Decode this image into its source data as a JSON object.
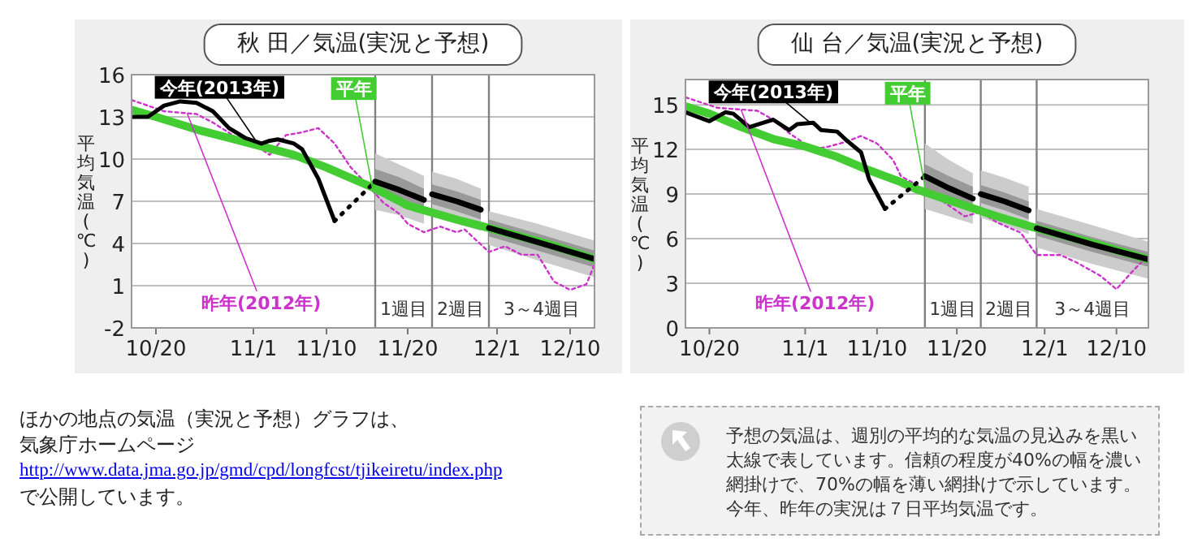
{
  "chart_data": [
    {
      "type": "line",
      "title": "秋 田／気温(実況と予想)",
      "ylabel": "平均気温(℃)",
      "xlim": [
        "--10-17",
        "--12-13"
      ],
      "xticks": [
        {
          "value": "--10-20",
          "label": "10/20"
        },
        {
          "value": "--11-01",
          "label": "11/1"
        },
        {
          "value": "--11-10",
          "label": "11/10"
        },
        {
          "value": "--11-20",
          "label": "11/20"
        },
        {
          "value": "--12-01",
          "label": "12/1"
        },
        {
          "value": "--12-10",
          "label": "12/10"
        }
      ],
      "ylim": [
        -2,
        16
      ],
      "yticks": [
        -2,
        1,
        4,
        7,
        10,
        13,
        16
      ],
      "grid": "y",
      "ref_lines": [
        {
          "axis": "x",
          "value": "--11-16",
          "label": "1週目",
          "color": "#808080"
        },
        {
          "axis": "x",
          "value": "--11-23",
          "label": "2週目",
          "color": "#808080"
        },
        {
          "axis": "x",
          "value": "--11-30",
          "label": "3～4週目",
          "color": "#808080"
        }
      ],
      "series": [
        {
          "color": "#000000",
          "x": [
            "--11-16",
            "--11-19",
            "--11-22"
          ],
          "values": [
            8.4,
            7.8,
            7.1
          ],
          "lower": [
            6.4,
            6.0,
            5.4
          ],
          "upper": [
            10.4,
            9.6,
            8.8
          ]
        },
        {
          "color": "#000000",
          "x": [
            "--11-23",
            "--11-26",
            "--11-29"
          ],
          "values": [
            7.5,
            7.0,
            6.4
          ],
          "lower": [
            5.9,
            5.4,
            4.9
          ],
          "upper": [
            9.1,
            8.6,
            7.9
          ]
        },
        {
          "color": "#000000",
          "x": [
            "--11-30",
            "--12-06",
            "--12-13"
          ],
          "values": [
            5.1,
            4.1,
            2.9
          ],
          "lower": [
            3.9,
            2.8,
            1.6
          ],
          "upper": [
            6.3,
            5.4,
            4.2
          ]
        },
        {
          "color": "#999999",
          "x": [
            "--11-16",
            "--11-19",
            "--11-22"
          ],
          "values": [
            null,
            null,
            null
          ],
          "lower": [
            7.5,
            7.0,
            6.3
          ],
          "upper": [
            9.3,
            8.7,
            7.9
          ]
        },
        {
          "color": "#999999",
          "x": [
            "--11-23",
            "--11-26",
            "--11-29"
          ],
          "values": [
            null,
            null,
            null
          ],
          "lower": [
            6.8,
            6.3,
            5.7
          ],
          "upper": [
            8.2,
            7.7,
            7.1
          ]
        },
        {
          "color": "#999999",
          "x": [
            "--11-30",
            "--12-06",
            "--12-13"
          ],
          "values": [
            null,
            null,
            null
          ],
          "lower": [
            4.5,
            3.5,
            2.3
          ],
          "upper": [
            5.7,
            4.7,
            3.5
          ]
        },
        {
          "name": "昨年(2012年)",
          "color": "#cc33cc",
          "line_style": "dotted",
          "x": [
            "--10-17",
            "--10-21",
            "--10-25",
            "--10-27",
            "--10-30",
            "--11-02",
            "--11-03",
            "--11-05",
            "--11-07",
            "--11-09",
            "--11-11",
            "--11-13",
            "--11-15",
            "--11-17",
            "--11-19",
            "--11-20",
            "--11-22",
            "--11-24",
            "--11-26",
            "--11-27",
            "--11-30",
            "--12-02",
            "--12-04",
            "--12-06",
            "--12-08",
            "--12-10",
            "--12-12",
            "--12-13"
          ],
          "values": [
            14.2,
            13.4,
            13.2,
            12.6,
            11.5,
            10.7,
            10.3,
            11.7,
            11.9,
            12.2,
            11.1,
            9.4,
            8.2,
            6.9,
            6.1,
            5.4,
            4.8,
            5.2,
            4.8,
            5.0,
            3.4,
            3.8,
            3.2,
            3.2,
            1.3,
            0.7,
            1.1,
            2.5
          ]
        },
        {
          "name": "平年",
          "color": "#44cc33",
          "x": [
            "--10-17",
            "--10-20",
            "--10-25",
            "--10-29",
            "--11-02",
            "--11-06",
            "--11-10",
            "--11-14",
            "--11-16",
            "--11-20",
            "--11-26",
            "--11-30",
            "--12-07",
            "--12-13"
          ],
          "values": [
            13.5,
            13.0,
            12.1,
            11.5,
            10.9,
            10.3,
            9.4,
            8.4,
            7.9,
            6.7,
            5.7,
            5.1,
            4.0,
            2.9
          ]
        },
        {
          "name": "今年(2013年)",
          "color": "#000000",
          "x": [
            "--10-17",
            "--10-19",
            "--10-21",
            "--10-23",
            "--10-25",
            "--10-27",
            "--10-29",
            "--10-31",
            "--11-02",
            "--11-03",
            "--11-04",
            "--11-06",
            "--11-07",
            "--11-09",
            "--11-11"
          ],
          "values": [
            13.0,
            13.0,
            13.8,
            14.1,
            14.0,
            13.4,
            12.2,
            11.5,
            11.1,
            11.3,
            11.4,
            11.1,
            10.7,
            8.6,
            5.6
          ]
        },
        {
          "color": "#000000",
          "line_style": "dotted",
          "x": [
            "--11-11",
            "--11-16"
          ],
          "values": [
            5.6,
            8.4
          ]
        }
      ]
    },
    {
      "type": "line",
      "title": "仙 台／気温(実況と予想)",
      "ylabel": "平均気温(℃)",
      "xlim": [
        "--10-17",
        "--12-14"
      ],
      "xticks": [
        {
          "value": "--10-20",
          "label": "10/20"
        },
        {
          "value": "--11-01",
          "label": "11/1"
        },
        {
          "value": "--11-10",
          "label": "11/10"
        },
        {
          "value": "--11-20",
          "label": "11/20"
        },
        {
          "value": "--12-01",
          "label": "12/1"
        },
        {
          "value": "--12-10",
          "label": "12/10"
        }
      ],
      "ylim": [
        0,
        16.7
      ],
      "yticks": [
        0,
        3,
        6,
        9,
        12,
        15
      ],
      "grid": "y",
      "ref_lines": [
        {
          "axis": "x",
          "value": "--11-16",
          "label": "1週目",
          "color": "#808080"
        },
        {
          "axis": "x",
          "value": "--11-23",
          "label": "2週目",
          "color": "#808080"
        },
        {
          "axis": "x",
          "value": "--11-30",
          "label": "3～4週目",
          "color": "#808080"
        }
      ],
      "series": [
        {
          "color": "#000000",
          "x": [
            "--11-16",
            "--11-19",
            "--11-22"
          ],
          "values": [
            10.2,
            9.4,
            8.7
          ],
          "lower": [
            8.0,
            7.5,
            7.0
          ],
          "upper": [
            12.4,
            11.3,
            10.4
          ]
        },
        {
          "color": "#000000",
          "x": [
            "--11-23",
            "--11-26",
            "--11-29"
          ],
          "values": [
            9.0,
            8.5,
            7.9
          ],
          "lower": [
            7.4,
            6.9,
            6.3
          ],
          "upper": [
            10.6,
            10.1,
            9.5
          ]
        },
        {
          "color": "#000000",
          "x": [
            "--11-30",
            "--12-07",
            "--12-14"
          ],
          "values": [
            6.7,
            5.6,
            4.6
          ],
          "lower": [
            5.4,
            4.3,
            3.3
          ],
          "upper": [
            8.0,
            6.9,
            5.8
          ]
        },
        {
          "color": "#999999",
          "x": [
            "--11-16",
            "--11-19",
            "--11-22"
          ],
          "values": [
            null,
            null,
            null
          ],
          "lower": [
            9.4,
            8.6,
            7.9
          ],
          "upper": [
            11.0,
            10.2,
            9.5
          ]
        },
        {
          "color": "#999999",
          "x": [
            "--11-23",
            "--11-26",
            "--11-29"
          ],
          "values": [
            null,
            null,
            null
          ],
          "lower": [
            8.4,
            7.9,
            7.3
          ],
          "upper": [
            9.6,
            9.1,
            8.5
          ]
        },
        {
          "color": "#999999",
          "x": [
            "--11-30",
            "--12-07",
            "--12-14"
          ],
          "values": [
            null,
            null,
            null
          ],
          "lower": [
            6.2,
            5.1,
            4.1
          ],
          "upper": [
            7.2,
            6.1,
            5.1
          ]
        },
        {
          "name": "昨年(2012年)",
          "color": "#cc33cc",
          "line_style": "dotted",
          "x": [
            "--10-17",
            "--10-21",
            "--10-26",
            "--10-28",
            "--10-30",
            "--11-02",
            "--11-04",
            "--11-06",
            "--11-08",
            "--11-10",
            "--11-12",
            "--11-13",
            "--11-16",
            "--11-18",
            "--11-21",
            "--11-23",
            "--11-25",
            "--11-28",
            "--11-30",
            "--12-03",
            "--12-05",
            "--12-08",
            "--12-10",
            "--12-12",
            "--12-14"
          ],
          "values": [
            15.5,
            14.8,
            14.6,
            14.0,
            13.1,
            12.0,
            12.2,
            12.5,
            12.9,
            12.4,
            11.3,
            10.2,
            9.3,
            8.6,
            7.5,
            7.8,
            7.1,
            6.4,
            4.9,
            4.9,
            4.4,
            3.5,
            2.6,
            3.8,
            4.9
          ]
        },
        {
          "name": "平年",
          "color": "#44cc33",
          "x": [
            "--10-17",
            "--10-20",
            "--10-24",
            "--10-28",
            "--11-01",
            "--11-05",
            "--11-09",
            "--11-13",
            "--11-15",
            "--11-20",
            "--11-25",
            "--11-30",
            "--12-07",
            "--12-14"
          ],
          "values": [
            14.9,
            14.4,
            13.5,
            12.7,
            12.2,
            11.5,
            10.6,
            9.8,
            9.3,
            8.4,
            7.5,
            6.7,
            5.7,
            4.6
          ]
        },
        {
          "name": "今年(2013年)",
          "color": "#000000",
          "x": [
            "--10-17",
            "--10-20",
            "--10-22",
            "--10-23",
            "--10-25",
            "--10-28",
            "--10-30",
            "--10-31",
            "--11-02",
            "--11-03",
            "--11-05",
            "--11-06",
            "--11-08",
            "--11-09",
            "--11-11"
          ],
          "values": [
            14.5,
            13.9,
            14.5,
            14.4,
            13.5,
            14.0,
            13.3,
            13.7,
            13.8,
            13.3,
            13.2,
            12.7,
            11.8,
            10.0,
            8.0
          ]
        },
        {
          "color": "#000000",
          "line_style": "dotted",
          "x": [
            "--11-11",
            "--11-16"
          ],
          "values": [
            8.0,
            10.2
          ]
        }
      ]
    },
    {
      "type": "other",
      "annotations": [
        "ほかの地点の気温（実況と予想）グラフは、",
        "気象庁ホームページ",
        "http://www.data.jma.go.jp/gmd/cpd/longfcst/tjikeiretu/index.php",
        "で公開しています。",
        "予想の気温は、週別の平均的な気温の見込みを黒い太線で表しています。信頼の程度が40%の幅を濃い網掛けで、70%の幅を薄い網掛けで示しています。今年、昨年の実況は７日平均気温です。"
      ]
    }
  ]
}
